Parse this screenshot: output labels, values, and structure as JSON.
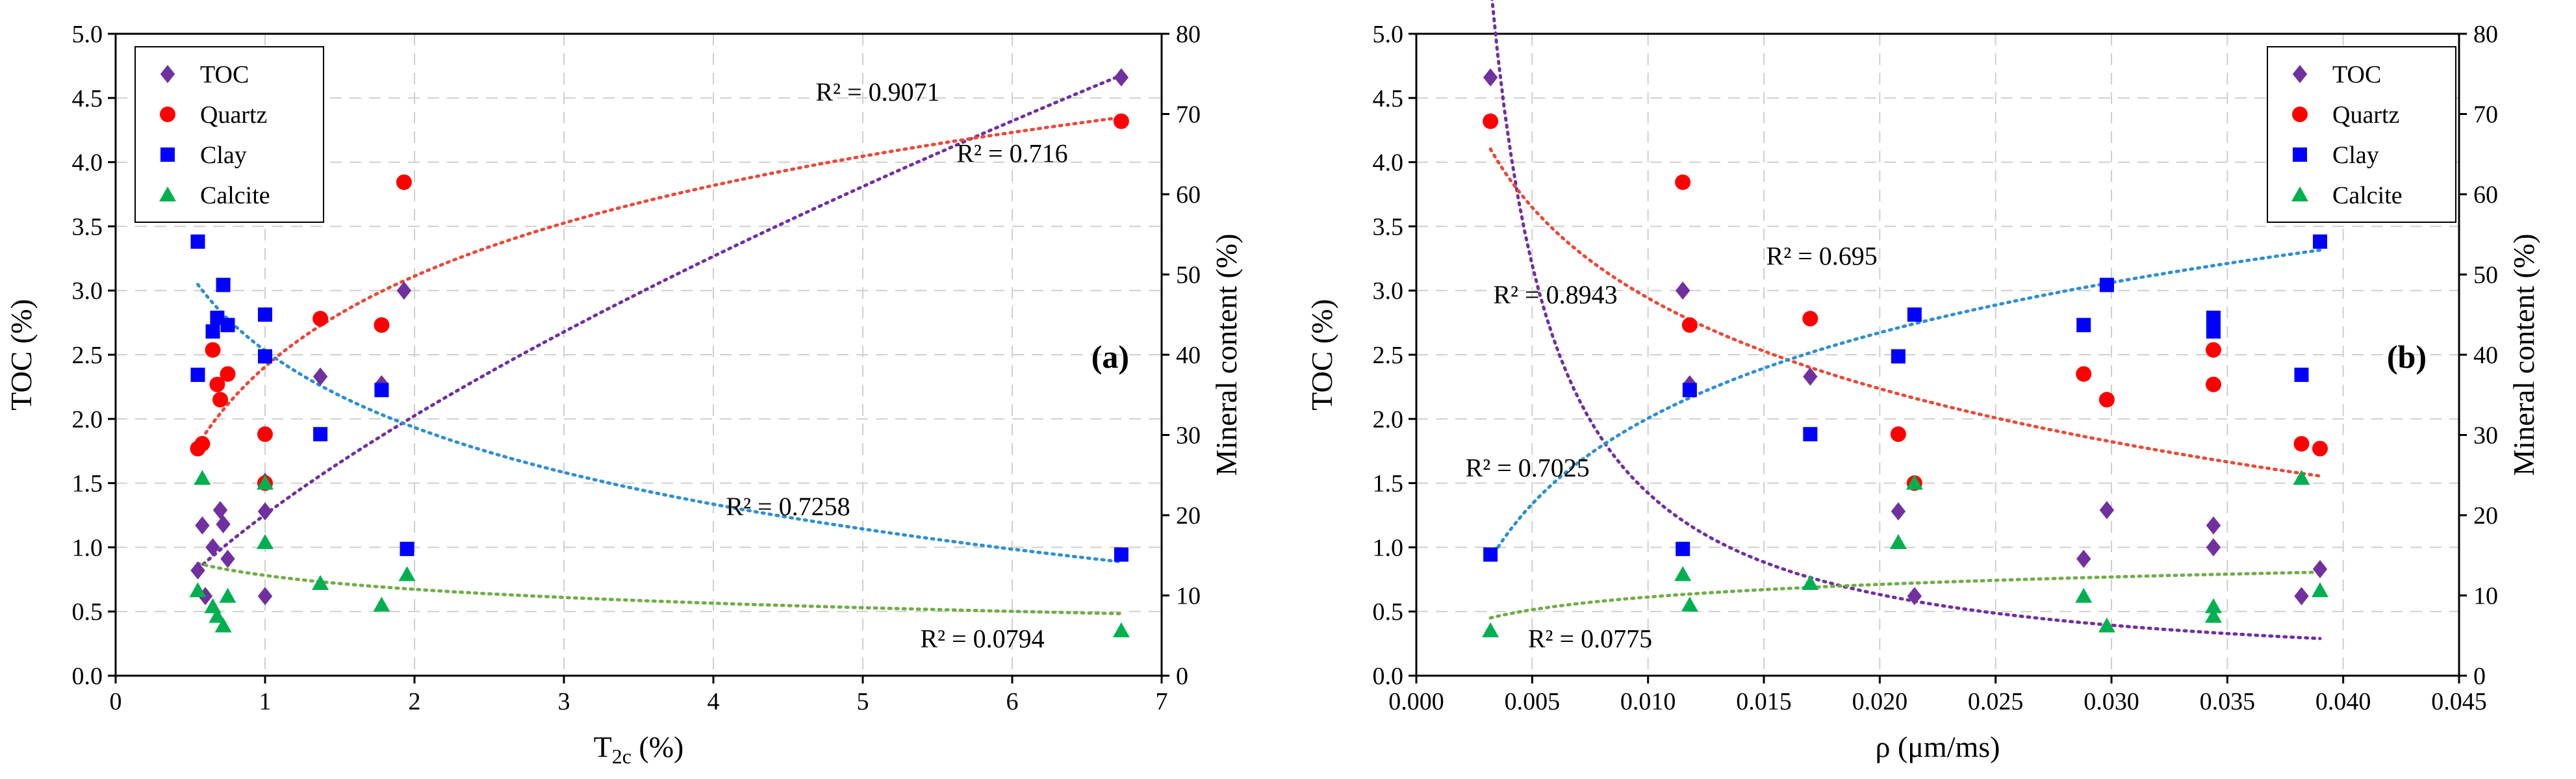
{
  "colors": {
    "toc": "#7030a0",
    "quartz": "#ff0000",
    "clay": "#0000ff",
    "calcite": "#00b050",
    "toc_trend": "#7030a0",
    "quartz_trend": "#e84a3a",
    "clay_trend": "#2f8fd0",
    "calcite_trend": "#70ad47",
    "grid": "#cfcfcf",
    "axis": "#000000"
  },
  "chart_data": [
    {
      "type": "scatter",
      "panel_label": "(a)",
      "xlabel": "T",
      "xlabel_sub": "2c",
      "xlabel_suffix": " (%)",
      "ylabel_left": "TOC (%)",
      "ylabel_right": "Mineral content (%)",
      "xlim": [
        0,
        7
      ],
      "xticks": [
        "0",
        "1",
        "2",
        "3",
        "4",
        "5",
        "6",
        "7"
      ],
      "xtick_values": [
        0,
        1,
        2,
        3,
        4,
        5,
        6,
        7
      ],
      "ylim_left": [
        0,
        5
      ],
      "yticks_left": [
        "0.0",
        "0.5",
        "1.0",
        "1.5",
        "2.0",
        "2.5",
        "3.0",
        "3.5",
        "4.0",
        "4.5",
        "5.0"
      ],
      "ytick_values_left": [
        0,
        0.5,
        1,
        1.5,
        2,
        2.5,
        3,
        3.5,
        4,
        4.5,
        5
      ],
      "ylim_right": [
        0,
        80
      ],
      "yticks_right": [
        "0",
        "10",
        "20",
        "30",
        "40",
        "50",
        "60",
        "70",
        "80"
      ],
      "ytick_values_right": [
        0,
        10,
        20,
        30,
        40,
        50,
        60,
        70,
        80
      ],
      "grid": true,
      "legend_position": "top-left",
      "legend": [
        "TOC",
        "Quartz",
        "Clay",
        "Calcite"
      ],
      "series": [
        {
          "name": "TOC",
          "axis": "left",
          "marker": "diamond",
          "color_key": "toc",
          "x": [
            0.55,
            0.58,
            0.6,
            0.65,
            0.7,
            0.72,
            0.75,
            1.0,
            1.0,
            1.0,
            1.37,
            1.78,
            1.93,
            6.73
          ],
          "y": [
            0.82,
            1.17,
            0.62,
            1.0,
            1.29,
            1.18,
            0.91,
            0.62,
            1.28,
            1.51,
            2.33,
            2.27,
            3.0,
            4.66
          ]
        },
        {
          "name": "Quartz",
          "axis": "right",
          "marker": "circle",
          "color_key": "quartz",
          "x": [
            0.55,
            0.58,
            0.65,
            0.68,
            0.7,
            0.75,
            1.0,
            1.0,
            1.37,
            1.78,
            1.93,
            6.73
          ],
          "y": [
            28.3,
            28.9,
            40.6,
            36.3,
            34.4,
            37.6,
            30.1,
            24.0,
            44.5,
            43.7,
            61.5,
            69.1
          ]
        },
        {
          "name": "Clay",
          "axis": "right",
          "marker": "square",
          "color_key": "clay",
          "x": [
            0.55,
            0.55,
            0.65,
            0.68,
            0.72,
            0.75,
            1.0,
            1.0,
            1.37,
            1.78,
            1.95,
            6.73
          ],
          "y": [
            54.1,
            37.5,
            42.9,
            44.6,
            48.7,
            43.7,
            39.8,
            45.0,
            30.1,
            35.6,
            15.8,
            15.1
          ]
        },
        {
          "name": "Calcite",
          "axis": "right",
          "marker": "triangle",
          "color_key": "calcite",
          "x": [
            0.55,
            0.58,
            0.65,
            0.68,
            0.72,
            0.75,
            1.0,
            1.0,
            1.37,
            1.78,
            1.95,
            6.73
          ],
          "y": [
            10.6,
            24.6,
            8.6,
            7.4,
            6.2,
            9.9,
            16.6,
            24.0,
            11.5,
            8.8,
            12.6,
            5.6
          ]
        }
      ],
      "trendlines": [
        {
          "name": "TOC",
          "axis": "left",
          "model": "power",
          "a": 1.255,
          "b": 0.69,
          "x_range": [
            0.55,
            6.73
          ],
          "r2_label": "R² = 0.9071",
          "color_key": "toc_trend",
          "label_pos": [
            5.1,
            4.48
          ]
        },
        {
          "name": "Quartz",
          "axis": "right",
          "model": "log",
          "a": 38.5,
          "b": 16.3,
          "x_range": [
            0.55,
            6.73
          ],
          "r2_label": "R² = 0.716",
          "color_key": "quartz_trend",
          "label_pos": [
            6.0,
            4.0
          ]
        },
        {
          "name": "Clay",
          "axis": "right",
          "model": "log",
          "a": 40.5,
          "b": -13.8,
          "x_range": [
            0.55,
            6.73
          ],
          "r2_label": "R² = 0.7258",
          "color_key": "clay_trend",
          "label_pos": [
            4.5,
            1.25
          ]
        },
        {
          "name": "Calcite",
          "axis": "right",
          "model": "log",
          "a": 12.5,
          "b": -2.5,
          "x_range": [
            0.55,
            6.73
          ],
          "r2_label": "R² = 0.0794",
          "color_key": "calcite_trend",
          "label_pos": [
            5.8,
            0.22
          ]
        }
      ]
    },
    {
      "type": "scatter",
      "panel_label": "(b)",
      "xlabel": "ρ (μm/ms)",
      "xlabel_sub": "",
      "xlabel_suffix": "",
      "ylabel_left": "TOC (%)",
      "ylabel_right": "Mineral content (%)",
      "xlim": [
        0,
        0.045
      ],
      "xticks": [
        "0.000",
        "0.005",
        "0.010",
        "0.015",
        "0.020",
        "0.025",
        "0.030",
        "0.035",
        "0.040",
        "0.045"
      ],
      "xtick_values": [
        0,
        0.005,
        0.01,
        0.015,
        0.02,
        0.025,
        0.03,
        0.035,
        0.04,
        0.045
      ],
      "ylim_left": [
        0,
        5
      ],
      "yticks_left": [
        "0.0",
        "0.5",
        "1.0",
        "1.5",
        "2.0",
        "2.5",
        "3.0",
        "3.5",
        "4.0",
        "4.5",
        "5.0"
      ],
      "ytick_values_left": [
        0,
        0.5,
        1,
        1.5,
        2,
        2.5,
        3,
        3.5,
        4,
        4.5,
        5
      ],
      "ylim_right": [
        0,
        80
      ],
      "yticks_right": [
        "0",
        "10",
        "20",
        "30",
        "40",
        "50",
        "60",
        "70",
        "80"
      ],
      "ytick_values_right": [
        0,
        10,
        20,
        30,
        40,
        50,
        60,
        70,
        80
      ],
      "grid": true,
      "legend_position": "top-right",
      "legend": [
        "TOC",
        "Quartz",
        "Clay",
        "Calcite"
      ],
      "series": [
        {
          "name": "TOC",
          "axis": "left",
          "marker": "diamond",
          "color_key": "toc",
          "x": [
            0.0032,
            0.0115,
            0.0118,
            0.017,
            0.0208,
            0.0215,
            0.0288,
            0.0298,
            0.0344,
            0.0344,
            0.0382,
            0.039
          ],
          "y": [
            4.66,
            3.0,
            2.27,
            2.33,
            1.28,
            0.62,
            0.91,
            1.29,
            1.17,
            1.0,
            0.62,
            0.83
          ]
        },
        {
          "name": "Quartz",
          "axis": "right",
          "marker": "circle",
          "color_key": "quartz",
          "x": [
            0.0032,
            0.0115,
            0.0118,
            0.017,
            0.0208,
            0.0215,
            0.0288,
            0.0298,
            0.0344,
            0.0344,
            0.0382,
            0.039
          ],
          "y": [
            69.1,
            61.5,
            43.7,
            44.5,
            30.1,
            24.0,
            37.6,
            34.4,
            40.6,
            36.3,
            28.9,
            28.3
          ]
        },
        {
          "name": "Clay",
          "axis": "right",
          "marker": "square",
          "color_key": "clay",
          "x": [
            0.0032,
            0.0115,
            0.0118,
            0.017,
            0.0208,
            0.0215,
            0.0288,
            0.0298,
            0.0344,
            0.0344,
            0.0382,
            0.039
          ],
          "y": [
            15.1,
            15.8,
            35.6,
            30.1,
            39.8,
            45.0,
            43.7,
            48.7,
            44.6,
            42.9,
            37.5,
            54.1
          ]
        },
        {
          "name": "Calcite",
          "axis": "right",
          "marker": "triangle",
          "color_key": "calcite",
          "x": [
            0.0032,
            0.0115,
            0.0118,
            0.017,
            0.0208,
            0.0215,
            0.0288,
            0.0298,
            0.0344,
            0.0344,
            0.0382,
            0.039
          ],
          "y": [
            5.6,
            12.6,
            8.8,
            11.5,
            16.6,
            24.0,
            9.9,
            6.2,
            8.6,
            7.4,
            24.6,
            10.6
          ]
        }
      ],
      "trendlines": [
        {
          "name": "TOC",
          "axis": "left",
          "model": "power",
          "a": 0.0065,
          "b": -1.17,
          "x_range": [
            0.0032,
            0.039
          ],
          "r2_label": "R² = 0.8943",
          "color_key": "toc_trend",
          "label_pos": [
            0.006,
            2.9
          ]
        },
        {
          "name": "Quartz",
          "axis": "right",
          "model": "log",
          "a": -28.0,
          "b": -16.3,
          "x_range": [
            0.0032,
            0.039
          ],
          "r2_label": "R² = 0.695",
          "color_key": "quartz_trend",
          "label_pos": [
            0.0175,
            3.2
          ]
        },
        {
          "name": "Clay",
          "axis": "right",
          "model": "log",
          "a": 103.0,
          "b": 15.4,
          "x_range": [
            0.0032,
            0.039
          ],
          "r2_label": "R² = 0.7025",
          "color_key": "clay_trend",
          "label_pos": [
            0.0048,
            1.55
          ]
        },
        {
          "name": "Calcite",
          "axis": "right",
          "model": "log",
          "a": 20.3,
          "b": 2.28,
          "x_range": [
            0.0032,
            0.039
          ],
          "r2_label": "R² = 0.0775",
          "color_key": "calcite_trend",
          "label_pos": [
            0.0075,
            0.22
          ]
        }
      ]
    }
  ]
}
